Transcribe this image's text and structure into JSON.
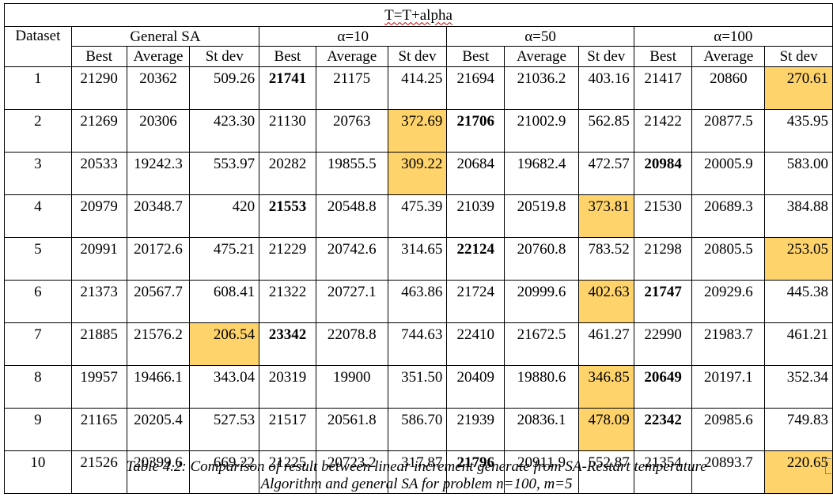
{
  "title": "T=T+alpha",
  "header": {
    "dataset_label": "Dataset",
    "groups": [
      "General SA",
      "α=10",
      "α=50",
      "α=100"
    ],
    "sub": [
      "Best",
      "Average",
      "St dev"
    ]
  },
  "rows": [
    {
      "ds": "1",
      "v": [
        "21290",
        "20362",
        "509.26",
        "21741",
        "21175",
        "414.25",
        "21694",
        "21036.2",
        "403.16",
        "21417",
        "20860",
        "270.61"
      ]
    },
    {
      "ds": "2",
      "v": [
        "21269",
        "20306",
        "423.30",
        "21130",
        "20763",
        "372.69",
        "21706",
        "21002.9",
        "562.85",
        "21422",
        "20877.5",
        "435.95"
      ]
    },
    {
      "ds": "3",
      "v": [
        "20533",
        "19242.3",
        "553.97",
        "20282",
        "19855.5",
        "309.22",
        "20684",
        "19682.4",
        "472.57",
        "20984",
        "20005.9",
        "583.00"
      ]
    },
    {
      "ds": "4",
      "v": [
        "20979",
        "20348.7",
        "420",
        "21553",
        "20548.8",
        "475.39",
        "21039",
        "20519.8",
        "373.81",
        "21530",
        "20689.3",
        "384.88"
      ]
    },
    {
      "ds": "5",
      "v": [
        "20991",
        "20172.6",
        "475.21",
        "21229",
        "20742.6",
        "314.65",
        "22124",
        "20760.8",
        "783.52",
        "21298",
        "20805.5",
        "253.05"
      ]
    },
    {
      "ds": "6",
      "v": [
        "21373",
        "20567.7",
        "608.41",
        "21322",
        "20727.1",
        "463.86",
        "21724",
        "20999.6",
        "402.63",
        "21747",
        "20929.6",
        "445.38"
      ]
    },
    {
      "ds": "7",
      "v": [
        "21885",
        "21576.2",
        "206.54",
        "23342",
        "22078.8",
        "744.63",
        "22410",
        "21672.5",
        "461.27",
        "22990",
        "21983.7",
        "461.21"
      ]
    },
    {
      "ds": "8",
      "v": [
        "19957",
        "19466.1",
        "343.04",
        "20319",
        "19900",
        "351.50",
        "20409",
        "19880.6",
        "346.85",
        "20649",
        "20197.1",
        "352.34"
      ]
    },
    {
      "ds": "9",
      "v": [
        "21165",
        "20205.4",
        "527.53",
        "21517",
        "20561.8",
        "586.70",
        "21939",
        "20836.1",
        "478.09",
        "22342",
        "20985.6",
        "749.83"
      ]
    },
    {
      "ds": "10",
      "v": [
        "21526",
        "20399.6",
        "669.22",
        "21225",
        "20723.2",
        "317.87",
        "21796",
        "20911.9",
        "552.87",
        "21354",
        "20893.7",
        "220.65"
      ]
    }
  ],
  "bold_cells": [
    [
      0,
      3
    ],
    [
      1,
      6
    ],
    [
      2,
      9
    ],
    [
      3,
      3
    ],
    [
      4,
      6
    ],
    [
      5,
      9
    ],
    [
      6,
      3
    ],
    [
      7,
      9
    ],
    [
      8,
      9
    ],
    [
      9,
      6
    ]
  ],
  "highlight_cells": [
    [
      0,
      11
    ],
    [
      1,
      5
    ],
    [
      2,
      5
    ],
    [
      3,
      8
    ],
    [
      4,
      11
    ],
    [
      5,
      8
    ],
    [
      6,
      2
    ],
    [
      7,
      8
    ],
    [
      8,
      8
    ],
    [
      9,
      11
    ]
  ],
  "highlight_color": "#FFD36B",
  "caption": {
    "line1": "Table 4.2: Comparison of result between linear increment generate from SA-Restart temperature",
    "line2": "Algorithm and general SA for problem n=100, m=5"
  }
}
